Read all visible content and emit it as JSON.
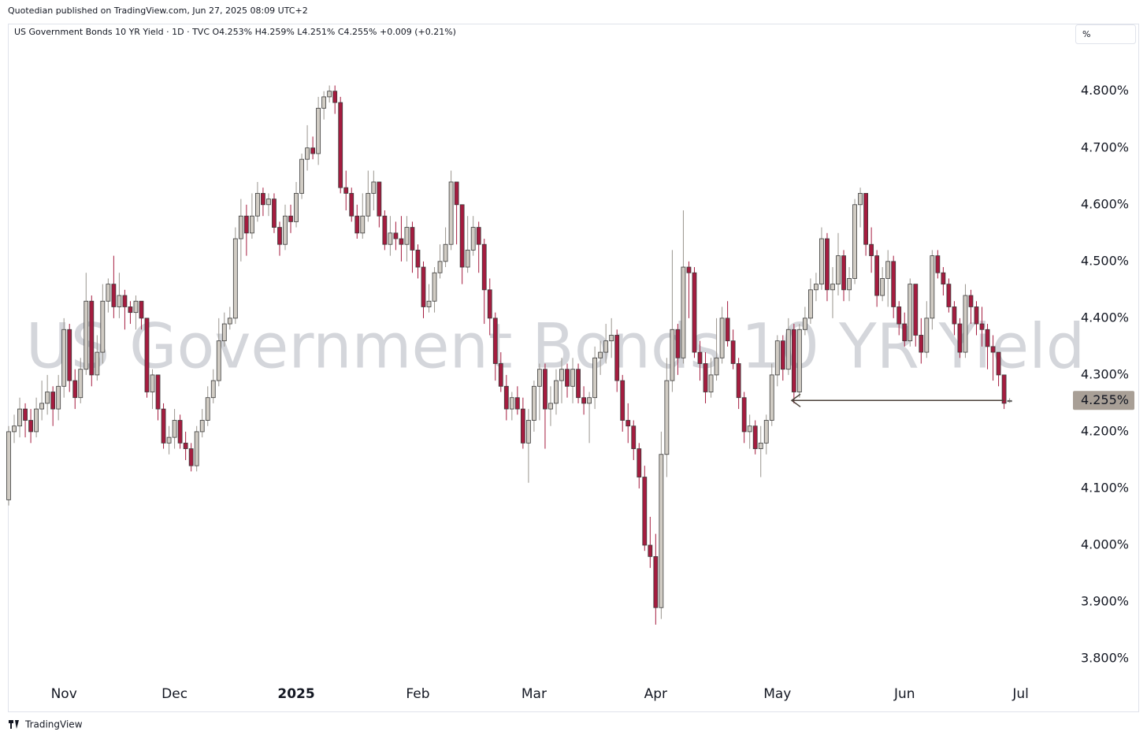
{
  "header": {
    "published": "Quotedian published on TradingView.com, Jun 27, 2025 08:09 UTC+2",
    "legend": "US Government Bonds 10 YR Yield · 1D · TVC  O4.253%  H4.259%  L4.251%  C4.255%  +0.009 (+0.21%)",
    "scale_button": "%"
  },
  "footer": {
    "brand": "TradingView"
  },
  "chart_data": {
    "type": "candlestick",
    "watermark": "US Government Bonds 10 YR Yield",
    "up_color": "#d1ccc4",
    "down_color": "#a51c3f",
    "ylim": [
      3.764,
      4.919
    ],
    "yticks": [
      {
        "value": 3.8,
        "label": "3.800%"
      },
      {
        "value": 3.9,
        "label": "3.900%"
      },
      {
        "value": 4.0,
        "label": "4.000%"
      },
      {
        "value": 4.1,
        "label": "4.100%"
      },
      {
        "value": 4.2,
        "label": "4.200%"
      },
      {
        "value": 4.3,
        "label": "4.300%"
      },
      {
        "value": 4.4,
        "label": "4.400%"
      },
      {
        "value": 4.5,
        "label": "4.500%"
      },
      {
        "value": 4.6,
        "label": "4.600%"
      },
      {
        "value": 4.7,
        "label": "4.700%"
      },
      {
        "value": 4.8,
        "label": "4.800%"
      }
    ],
    "xticks": [
      {
        "value": 10,
        "label": "Nov"
      },
      {
        "value": 30,
        "label": "Dec"
      },
      {
        "value": 52,
        "label": "2025"
      },
      {
        "value": 74,
        "label": "Feb"
      },
      {
        "value": 95,
        "label": "Mar"
      },
      {
        "value": 117,
        "label": "Apr"
      },
      {
        "value": 139,
        "label": "May"
      },
      {
        "value": 162,
        "label": "Jun"
      },
      {
        "value": 183,
        "label": "Jul"
      }
    ],
    "last_price": 4.255,
    "last_price_label": "4.255%",
    "candles": [
      [
        4.08,
        4.21,
        4.07,
        4.2
      ],
      [
        4.2,
        4.23,
        4.18,
        4.21
      ],
      [
        4.21,
        4.26,
        4.19,
        4.24
      ],
      [
        4.24,
        4.25,
        4.19,
        4.22
      ],
      [
        4.22,
        4.24,
        4.18,
        4.2
      ],
      [
        4.2,
        4.26,
        4.19,
        4.24
      ],
      [
        4.24,
        4.29,
        4.22,
        4.25
      ],
      [
        4.25,
        4.3,
        4.23,
        4.27
      ],
      [
        4.27,
        4.28,
        4.21,
        4.24
      ],
      [
        4.24,
        4.3,
        4.22,
        4.28
      ],
      [
        4.28,
        4.4,
        4.26,
        4.38
      ],
      [
        4.38,
        4.39,
        4.27,
        4.29
      ],
      [
        4.29,
        4.31,
        4.24,
        4.26
      ],
      [
        4.26,
        4.33,
        4.25,
        4.31
      ],
      [
        4.31,
        4.48,
        4.3,
        4.43
      ],
      [
        4.43,
        4.44,
        4.28,
        4.3
      ],
      [
        4.3,
        4.37,
        4.29,
        4.34
      ],
      [
        4.34,
        4.46,
        4.32,
        4.43
      ],
      [
        4.43,
        4.47,
        4.41,
        4.46
      ],
      [
        4.46,
        4.51,
        4.4,
        4.42
      ],
      [
        4.42,
        4.48,
        4.4,
        4.44
      ],
      [
        4.44,
        4.45,
        4.38,
        4.42
      ],
      [
        4.42,
        4.43,
        4.39,
        4.41
      ],
      [
        4.41,
        4.44,
        4.38,
        4.43
      ],
      [
        4.43,
        4.43,
        4.38,
        4.4
      ],
      [
        4.4,
        4.4,
        4.26,
        4.27
      ],
      [
        4.27,
        4.31,
        4.24,
        4.3
      ],
      [
        4.3,
        4.3,
        4.22,
        4.24
      ],
      [
        4.24,
        4.25,
        4.17,
        4.18
      ],
      [
        4.18,
        4.21,
        4.16,
        4.19
      ],
      [
        4.19,
        4.24,
        4.17,
        4.22
      ],
      [
        4.22,
        4.23,
        4.17,
        4.18
      ],
      [
        4.18,
        4.2,
        4.15,
        4.17
      ],
      [
        4.17,
        4.18,
        4.13,
        4.14
      ],
      [
        4.14,
        4.21,
        4.13,
        4.2
      ],
      [
        4.2,
        4.24,
        4.19,
        4.22
      ],
      [
        4.22,
        4.28,
        4.21,
        4.26
      ],
      [
        4.26,
        4.31,
        4.25,
        4.29
      ],
      [
        4.29,
        4.4,
        4.28,
        4.36
      ],
      [
        4.36,
        4.41,
        4.35,
        4.39
      ],
      [
        4.39,
        4.42,
        4.38,
        4.4
      ],
      [
        4.4,
        4.56,
        4.39,
        4.54
      ],
      [
        4.54,
        4.61,
        4.5,
        4.58
      ],
      [
        4.58,
        4.6,
        4.51,
        4.55
      ],
      [
        4.55,
        4.62,
        4.54,
        4.58
      ],
      [
        4.58,
        4.64,
        4.57,
        4.62
      ],
      [
        4.62,
        4.63,
        4.58,
        4.6
      ],
      [
        4.6,
        4.62,
        4.58,
        4.61
      ],
      [
        4.61,
        4.62,
        4.55,
        4.56
      ],
      [
        4.56,
        4.57,
        4.51,
        4.53
      ],
      [
        4.53,
        4.6,
        4.52,
        4.58
      ],
      [
        4.58,
        4.6,
        4.55,
        4.57
      ],
      [
        4.57,
        4.64,
        4.56,
        4.62
      ],
      [
        4.62,
        4.69,
        4.61,
        4.68
      ],
      [
        4.68,
        4.74,
        4.66,
        4.7
      ],
      [
        4.7,
        4.72,
        4.68,
        4.69
      ],
      [
        4.69,
        4.79,
        4.67,
        4.77
      ],
      [
        4.77,
        4.8,
        4.75,
        4.79
      ],
      [
        4.79,
        4.81,
        4.78,
        4.8
      ],
      [
        4.8,
        4.81,
        4.76,
        4.78
      ],
      [
        4.78,
        4.79,
        4.62,
        4.63
      ],
      [
        4.63,
        4.66,
        4.59,
        4.62
      ],
      [
        4.62,
        4.63,
        4.57,
        4.58
      ],
      [
        4.58,
        4.6,
        4.54,
        4.55
      ],
      [
        4.55,
        4.62,
        4.54,
        4.58
      ],
      [
        4.58,
        4.66,
        4.57,
        4.62
      ],
      [
        4.62,
        4.66,
        4.59,
        4.64
      ],
      [
        4.64,
        4.64,
        4.56,
        4.58
      ],
      [
        4.58,
        4.59,
        4.52,
        4.53
      ],
      [
        4.53,
        4.58,
        4.51,
        4.55
      ],
      [
        4.55,
        4.57,
        4.52,
        4.54
      ],
      [
        4.54,
        4.58,
        4.5,
        4.53
      ],
      [
        4.53,
        4.58,
        4.5,
        4.56
      ],
      [
        4.56,
        4.57,
        4.48,
        4.52
      ],
      [
        4.52,
        4.53,
        4.47,
        4.49
      ],
      [
        4.49,
        4.5,
        4.4,
        4.42
      ],
      [
        4.42,
        4.46,
        4.41,
        4.43
      ],
      [
        4.43,
        4.49,
        4.41,
        4.48
      ],
      [
        4.48,
        4.53,
        4.47,
        4.5
      ],
      [
        4.5,
        4.56,
        4.49,
        4.53
      ],
      [
        4.53,
        4.66,
        4.52,
        4.64
      ],
      [
        4.64,
        4.64,
        4.53,
        4.6
      ],
      [
        4.6,
        4.6,
        4.46,
        4.49
      ],
      [
        4.49,
        4.58,
        4.48,
        4.52
      ],
      [
        4.52,
        4.58,
        4.51,
        4.56
      ],
      [
        4.56,
        4.57,
        4.48,
        4.53
      ],
      [
        4.53,
        4.54,
        4.39,
        4.45
      ],
      [
        4.45,
        4.47,
        4.37,
        4.4
      ],
      [
        4.4,
        4.41,
        4.29,
        4.32
      ],
      [
        4.32,
        4.34,
        4.27,
        4.28
      ],
      [
        4.28,
        4.3,
        4.22,
        4.24
      ],
      [
        4.24,
        4.27,
        4.22,
        4.26
      ],
      [
        4.26,
        4.28,
        4.23,
        4.24
      ],
      [
        4.24,
        4.26,
        4.17,
        4.18
      ],
      [
        4.18,
        4.24,
        4.11,
        4.22
      ],
      [
        4.22,
        4.29,
        4.2,
        4.28
      ],
      [
        4.28,
        4.32,
        4.22,
        4.31
      ],
      [
        4.31,
        4.32,
        4.17,
        4.24
      ],
      [
        4.24,
        4.28,
        4.21,
        4.25
      ],
      [
        4.25,
        4.31,
        4.23,
        4.29
      ],
      [
        4.29,
        4.33,
        4.25,
        4.31
      ],
      [
        4.31,
        4.32,
        4.26,
        4.28
      ],
      [
        4.28,
        4.33,
        4.25,
        4.31
      ],
      [
        4.31,
        4.32,
        4.25,
        4.26
      ],
      [
        4.26,
        4.28,
        4.23,
        4.25
      ],
      [
        4.25,
        4.27,
        4.18,
        4.26
      ],
      [
        4.26,
        4.35,
        4.24,
        4.33
      ],
      [
        4.33,
        4.36,
        4.3,
        4.34
      ],
      [
        4.34,
        4.39,
        4.32,
        4.36
      ],
      [
        4.36,
        4.4,
        4.33,
        4.37
      ],
      [
        4.37,
        4.38,
        4.27,
        4.29
      ],
      [
        4.29,
        4.3,
        4.2,
        4.22
      ],
      [
        4.22,
        4.25,
        4.18,
        4.21
      ],
      [
        4.21,
        4.22,
        4.15,
        4.17
      ],
      [
        4.17,
        4.18,
        4.1,
        4.12
      ],
      [
        4.12,
        4.14,
        3.99,
        4.0
      ],
      [
        4.0,
        4.05,
        3.96,
        3.98
      ],
      [
        3.98,
        4.02,
        3.86,
        3.89
      ],
      [
        3.89,
        4.2,
        3.87,
        4.16
      ],
      [
        4.16,
        4.33,
        4.12,
        4.29
      ],
      [
        4.29,
        4.52,
        4.27,
        4.38
      ],
      [
        4.38,
        4.39,
        4.3,
        4.33
      ],
      [
        4.33,
        4.59,
        4.32,
        4.49
      ],
      [
        4.49,
        4.5,
        4.4,
        4.48
      ],
      [
        4.48,
        4.49,
        4.33,
        4.34
      ],
      [
        4.34,
        4.36,
        4.29,
        4.32
      ],
      [
        4.32,
        4.34,
        4.25,
        4.27
      ],
      [
        4.27,
        4.33,
        4.26,
        4.3
      ],
      [
        4.3,
        4.4,
        4.29,
        4.33
      ],
      [
        4.33,
        4.42,
        4.32,
        4.4
      ],
      [
        4.4,
        4.43,
        4.35,
        4.36
      ],
      [
        4.36,
        4.38,
        4.31,
        4.32
      ],
      [
        4.32,
        4.33,
        4.24,
        4.26
      ],
      [
        4.26,
        4.27,
        4.18,
        4.2
      ],
      [
        4.2,
        4.23,
        4.17,
        4.21
      ],
      [
        4.21,
        4.22,
        4.16,
        4.17
      ],
      [
        4.17,
        4.21,
        4.12,
        4.18
      ],
      [
        4.18,
        4.23,
        4.16,
        4.22
      ],
      [
        4.22,
        4.32,
        4.21,
        4.3
      ],
      [
        4.3,
        4.37,
        4.28,
        4.36
      ],
      [
        4.36,
        4.37,
        4.29,
        4.31
      ],
      [
        4.31,
        4.4,
        4.3,
        4.38
      ],
      [
        4.38,
        4.39,
        4.25,
        4.27
      ],
      [
        4.27,
        4.39,
        4.26,
        4.38
      ],
      [
        4.38,
        4.42,
        4.37,
        4.4
      ],
      [
        4.4,
        4.47,
        4.39,
        4.45
      ],
      [
        4.45,
        4.48,
        4.43,
        4.46
      ],
      [
        4.46,
        4.56,
        4.45,
        4.54
      ],
      [
        4.54,
        4.55,
        4.43,
        4.45
      ],
      [
        4.45,
        4.49,
        4.4,
        4.46
      ],
      [
        4.46,
        4.55,
        4.44,
        4.51
      ],
      [
        4.51,
        4.52,
        4.43,
        4.45
      ],
      [
        4.45,
        4.49,
        4.43,
        4.47
      ],
      [
        4.47,
        4.61,
        4.46,
        4.6
      ],
      [
        4.6,
        4.63,
        4.56,
        4.62
      ],
      [
        4.62,
        4.62,
        4.51,
        4.53
      ],
      [
        4.53,
        4.56,
        4.48,
        4.51
      ],
      [
        4.51,
        4.52,
        4.42,
        4.44
      ],
      [
        4.44,
        4.49,
        4.43,
        4.47
      ],
      [
        4.47,
        4.52,
        4.42,
        4.5
      ],
      [
        4.5,
        4.51,
        4.4,
        4.42
      ],
      [
        4.42,
        4.43,
        4.37,
        4.39
      ],
      [
        4.39,
        4.41,
        4.35,
        4.36
      ],
      [
        4.36,
        4.47,
        4.35,
        4.46
      ],
      [
        4.46,
        4.46,
        4.35,
        4.37
      ],
      [
        4.37,
        4.4,
        4.32,
        4.34
      ],
      [
        4.34,
        4.43,
        4.33,
        4.4
      ],
      [
        4.4,
        4.52,
        4.38,
        4.51
      ],
      [
        4.51,
        4.52,
        4.47,
        4.48
      ],
      [
        4.48,
        4.49,
        4.44,
        4.46
      ],
      [
        4.46,
        4.47,
        4.41,
        4.42
      ],
      [
        4.42,
        4.43,
        4.37,
        4.39
      ],
      [
        4.39,
        4.4,
        4.33,
        4.34
      ],
      [
        4.34,
        4.46,
        4.33,
        4.44
      ],
      [
        4.44,
        4.45,
        4.39,
        4.42
      ],
      [
        4.42,
        4.43,
        4.37,
        4.39
      ],
      [
        4.39,
        4.42,
        4.35,
        4.38
      ],
      [
        4.38,
        4.39,
        4.31,
        4.35
      ],
      [
        4.35,
        4.37,
        4.29,
        4.34
      ],
      [
        4.34,
        4.34,
        4.28,
        4.3
      ],
      [
        4.3,
        4.3,
        4.24,
        4.25
      ],
      [
        4.253,
        4.259,
        4.251,
        4.255
      ]
    ]
  }
}
